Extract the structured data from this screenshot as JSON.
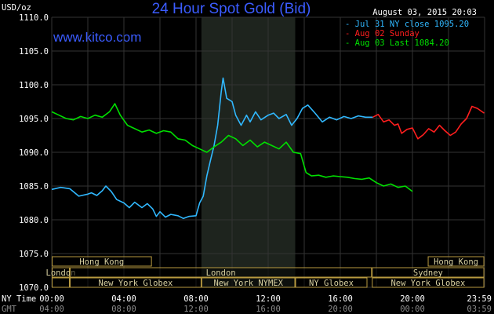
{
  "colors": {
    "background": "#000000",
    "grid": "#333333",
    "session_shade": "#1e241e",
    "jul31": "#30b8ff",
    "aug02": "#ff1e1e",
    "aug03": "#00e000",
    "title": "#3b5cff",
    "band_border": "#b89a40"
  },
  "header": {
    "title": "24 Hour Spot Gold (Bid)",
    "unit": "USD/oz",
    "date": "August 03, 2015 20:03",
    "website": "www.kitco.com"
  },
  "legend": [
    {
      "label": "Jul 31 NY close 1095.20",
      "color": "#30b8ff"
    },
    {
      "label": "Aug 02 Sunday",
      "color": "#ff1e1e"
    },
    {
      "label": "Aug 03 Last 1084.20",
      "color": "#00e000"
    }
  ],
  "footer": {
    "ny_label": "NY Time",
    "gmt_label": "GMT"
  },
  "chart_data": {
    "type": "line",
    "title": "24 Hour Spot Gold (Bid)",
    "ylabel": "USD/oz",
    "ylim": [
      1070,
      1110
    ],
    "xlim": [
      0,
      24
    ],
    "yticks": [
      "1110.0",
      "1105.0",
      "1100.0",
      "1095.0",
      "1090.0",
      "1085.0",
      "1080.0",
      "1075.0",
      "1070.0"
    ],
    "ytick_values": [
      1110,
      1105,
      1100,
      1095,
      1090,
      1085,
      1080,
      1075,
      1070
    ],
    "xticks_ny": [
      "00:00",
      "04:00",
      "08:00",
      "12:00",
      "16:00",
      "20:00",
      "23:59"
    ],
    "xticks_gmt": [
      "04:00",
      "08:00",
      "12:00",
      "16:00",
      "20:00",
      "00:00",
      "03:59"
    ],
    "xtick_values": [
      0,
      4,
      8,
      12,
      16,
      20,
      23.98
    ],
    "ny_session_shade": [
      8.3,
      13.5
    ],
    "sessions": [
      {
        "label": "Hong Kong",
        "row": 1,
        "x0": 0.0,
        "x1": 5.55
      },
      {
        "label": "Hong Kong",
        "row": 1,
        "x0": 20.85,
        "x1": 23.98
      },
      {
        "label": "London",
        "row": 2,
        "x0": 0.0,
        "x1": 1.0
      },
      {
        "label": "London",
        "row": 2,
        "x0": 1.0,
        "x1": 17.75
      },
      {
        "label": "Sydney",
        "row": 2,
        "x0": 17.75,
        "x1": 23.98
      },
      {
        "label": "",
        "row": 3,
        "x0": 0.0,
        "x1": 1.0
      },
      {
        "label": "New York Globex",
        "row": 3,
        "x0": 1.0,
        "x1": 8.3
      },
      {
        "label": "New York NYMEX",
        "row": 3,
        "x0": 8.3,
        "x1": 13.5
      },
      {
        "label": "NY Globex",
        "row": 3,
        "x0": 13.5,
        "x1": 17.5
      },
      {
        "label": "New York Globex",
        "row": 3,
        "x0": 17.75,
        "x1": 23.98
      }
    ],
    "series": [
      {
        "name": "Jul 31 NY close 1095.20",
        "color": "#30b8ff",
        "x": [
          0,
          0.5,
          1,
          1.5,
          2,
          2.2,
          2.5,
          2.8,
          3,
          3.3,
          3.6,
          4,
          4.3,
          4.6,
          5,
          5.3,
          5.6,
          5.8,
          6,
          6.3,
          6.6,
          7,
          7.3,
          7.6,
          8,
          8.2,
          8.4,
          8.6,
          8.8,
          9,
          9.2,
          9.4,
          9.5,
          9.7,
          10,
          10.2,
          10.5,
          10.8,
          11,
          11.3,
          11.6,
          12,
          12.3,
          12.6,
          13,
          13.3,
          13.6,
          13.9,
          14.2,
          14.6,
          15,
          15.4,
          15.8,
          16.2,
          16.6,
          17,
          17.4,
          17.8
        ],
        "y": [
          1084.5,
          1084.8,
          1084.6,
          1083.5,
          1083.8,
          1084.0,
          1083.6,
          1084.3,
          1085.0,
          1084.2,
          1083.0,
          1082.5,
          1081.8,
          1082.6,
          1081.8,
          1082.4,
          1081.6,
          1080.5,
          1081.2,
          1080.4,
          1080.8,
          1080.6,
          1080.2,
          1080.5,
          1080.6,
          1082.5,
          1083.5,
          1086.5,
          1088.8,
          1091.0,
          1094.0,
          1099.0,
          1101.0,
          1098.0,
          1097.5,
          1095.5,
          1094.0,
          1095.5,
          1094.5,
          1096.0,
          1094.8,
          1095.5,
          1095.8,
          1095.0,
          1095.6,
          1094.0,
          1095.0,
          1096.5,
          1097.0,
          1095.8,
          1094.5,
          1095.2,
          1094.8,
          1095.3,
          1095.0,
          1095.4,
          1095.2,
          1095.2
        ]
      },
      {
        "name": "Aug 02 Sunday",
        "color": "#ff1e1e",
        "x": [
          17.8,
          18.1,
          18.4,
          18.7,
          19.0,
          19.2,
          19.4,
          19.7,
          20.0,
          20.3,
          20.6,
          20.9,
          21.2,
          21.5,
          21.8,
          22.1,
          22.4,
          22.7,
          23.0,
          23.3,
          23.6,
          23.98
        ],
        "y": [
          1095.2,
          1095.6,
          1094.5,
          1094.8,
          1094.0,
          1094.2,
          1092.8,
          1093.4,
          1093.6,
          1092.0,
          1092.6,
          1093.5,
          1093.0,
          1094.0,
          1093.2,
          1092.5,
          1093.0,
          1094.2,
          1095.0,
          1096.8,
          1096.5,
          1095.8
        ]
      },
      {
        "name": "Aug 03 Last 1084.20",
        "color": "#00e000",
        "x": [
          0,
          0.4,
          0.8,
          1.2,
          1.6,
          2,
          2.4,
          2.8,
          3.2,
          3.5,
          3.8,
          4.2,
          4.6,
          5,
          5.4,
          5.8,
          6.2,
          6.6,
          7,
          7.4,
          7.8,
          8.2,
          8.6,
          9,
          9.4,
          9.8,
          10.2,
          10.6,
          11,
          11.4,
          11.8,
          12.2,
          12.6,
          13,
          13.4,
          13.8,
          14.1,
          14.4,
          14.8,
          15.2,
          15.6,
          16,
          16.4,
          16.8,
          17.2,
          17.6,
          18,
          18.4,
          18.8,
          19.2,
          19.6,
          20
        ],
        "y": [
          1096.0,
          1095.5,
          1095.0,
          1094.8,
          1095.3,
          1095.0,
          1095.5,
          1095.2,
          1096.0,
          1097.2,
          1095.5,
          1094.0,
          1093.5,
          1093.0,
          1093.3,
          1092.8,
          1093.2,
          1093.0,
          1092.0,
          1091.8,
          1091.0,
          1090.5,
          1090.0,
          1090.8,
          1091.5,
          1092.5,
          1092.0,
          1091.0,
          1091.8,
          1090.8,
          1091.5,
          1091.0,
          1090.5,
          1091.5,
          1090.0,
          1089.8,
          1087.0,
          1086.5,
          1086.6,
          1086.3,
          1086.5,
          1086.4,
          1086.3,
          1086.1,
          1086.0,
          1086.2,
          1085.5,
          1085.0,
          1085.3,
          1084.8,
          1085.0,
          1084.2
        ]
      }
    ]
  }
}
